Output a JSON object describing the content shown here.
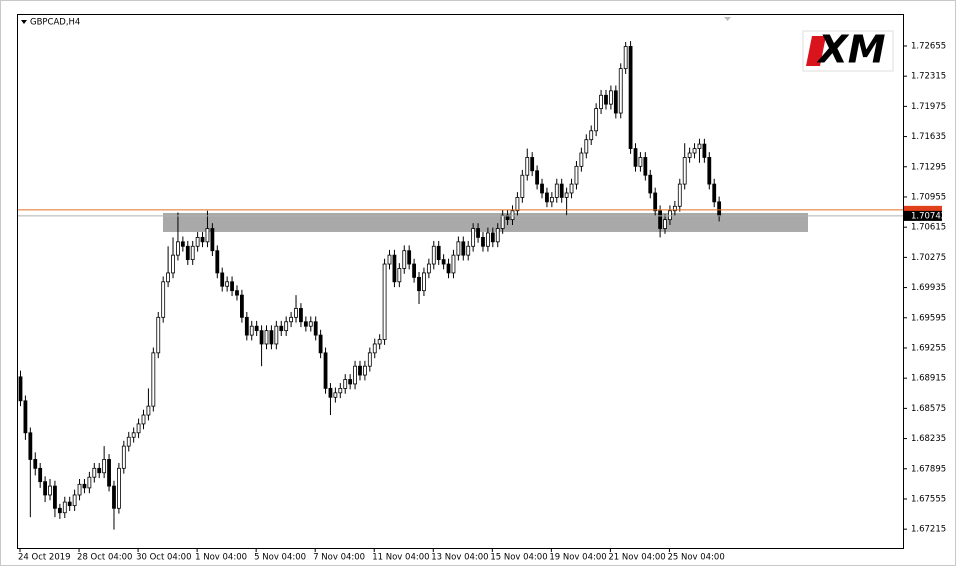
{
  "chart_data": {
    "type": "candlestick",
    "symbol": "GBPCAD,H4",
    "logo": "XM",
    "ylim": [
      1.67003,
      1.73015
    ],
    "yticks": [
      1.72655,
      1.72315,
      1.71975,
      1.71635,
      1.71295,
      1.70955,
      1.70615,
      1.70275,
      1.69935,
      1.69595,
      1.69255,
      1.68915,
      1.68575,
      1.68235,
      1.67895,
      1.67555,
      1.67215
    ],
    "xticks": [
      {
        "value": 0,
        "label": "24 Oct 2019"
      },
      {
        "value": 12,
        "label": "28 Oct 04:00"
      },
      {
        "value": 24,
        "label": "30 Oct 04:00"
      },
      {
        "value": 36,
        "label": "1 Nov 04:00"
      },
      {
        "value": 48,
        "label": "5 Nov 04:00"
      },
      {
        "value": 60,
        "label": "7 Nov 04:00"
      },
      {
        "value": 72,
        "label": "11 Nov 04:00"
      },
      {
        "value": 84,
        "label": "13 Nov 04:00"
      },
      {
        "value": 96,
        "label": "15 Nov 04:00"
      },
      {
        "value": 108,
        "label": "19 Nov 04:00"
      },
      {
        "value": 120,
        "label": "21 Nov 04:00"
      },
      {
        "value": 132,
        "label": "25 Nov 04:00"
      }
    ],
    "bid": {
      "value": 1.70742,
      "label": "1.70742"
    },
    "ask_line": 1.7081,
    "zone": [
      1.70561,
      1.70775
    ],
    "up_color": "#ffffff",
    "down_color": "#000000",
    "candles": [
      [
        1.6893,
        1.69,
        1.686,
        1.6866
      ],
      [
        1.6866,
        1.6872,
        1.6822,
        1.683
      ],
      [
        1.683,
        1.6836,
        1.6735,
        1.68
      ],
      [
        1.68,
        1.6808,
        1.6782,
        1.679
      ],
      [
        1.679,
        1.6796,
        1.6768,
        1.6775
      ],
      [
        1.6775,
        1.6781,
        1.6752,
        1.676
      ],
      [
        1.676,
        1.6778,
        1.6754,
        1.677
      ],
      [
        1.677,
        1.6776,
        1.6735,
        1.6745
      ],
      [
        1.6745,
        1.675,
        1.6733,
        1.674
      ],
      [
        1.674,
        1.6758,
        1.6734,
        1.6752
      ],
      [
        1.6752,
        1.6758,
        1.6742,
        1.6748
      ],
      [
        1.6748,
        1.6766,
        1.6742,
        1.676
      ],
      [
        1.676,
        1.6778,
        1.6754,
        1.6772
      ],
      [
        1.6772,
        1.6778,
        1.6762,
        1.6768
      ],
      [
        1.6768,
        1.6786,
        1.6762,
        1.678
      ],
      [
        1.678,
        1.6796,
        1.6774,
        1.679
      ],
      [
        1.679,
        1.6796,
        1.6779,
        1.6785
      ],
      [
        1.6785,
        1.6815,
        1.6779,
        1.68
      ],
      [
        1.68,
        1.6806,
        1.6764,
        1.677
      ],
      [
        1.677,
        1.6776,
        1.6721,
        1.6745
      ],
      [
        1.6745,
        1.6796,
        1.6739,
        1.679
      ],
      [
        1.679,
        1.6821,
        1.6784,
        1.6815
      ],
      [
        1.6815,
        1.6831,
        1.6809,
        1.6825
      ],
      [
        1.6825,
        1.6836,
        1.6819,
        1.683
      ],
      [
        1.683,
        1.6846,
        1.6824,
        1.684
      ],
      [
        1.684,
        1.6856,
        1.6834,
        1.685
      ],
      [
        1.685,
        1.688,
        1.6844,
        1.686
      ],
      [
        1.686,
        1.6926,
        1.6854,
        1.692
      ],
      [
        1.692,
        1.6966,
        1.6914,
        1.696
      ],
      [
        1.696,
        1.7006,
        1.6954,
        1.7
      ],
      [
        1.7,
        1.704,
        1.6994,
        1.701
      ],
      [
        1.701,
        1.705,
        1.7004,
        1.703
      ],
      [
        1.703,
        1.7078,
        1.7024,
        1.7045
      ],
      [
        1.7045,
        1.7051,
        1.7034,
        1.704
      ],
      [
        1.704,
        1.7046,
        1.7019,
        1.7025
      ],
      [
        1.7025,
        1.7046,
        1.7019,
        1.704
      ],
      [
        1.704,
        1.7056,
        1.7034,
        1.705
      ],
      [
        1.705,
        1.7056,
        1.7039,
        1.7045
      ],
      [
        1.7045,
        1.708,
        1.7039,
        1.706
      ],
      [
        1.706,
        1.7066,
        1.7029,
        1.7035
      ],
      [
        1.7035,
        1.7041,
        1.7004,
        1.701
      ],
      [
        1.701,
        1.7016,
        1.6989,
        1.6995
      ],
      [
        1.6995,
        1.7006,
        1.6989,
        1.7
      ],
      [
        1.7,
        1.7006,
        1.6984,
        1.699
      ],
      [
        1.699,
        1.6996,
        1.6979,
        1.6985
      ],
      [
        1.6985,
        1.6991,
        1.6954,
        1.696
      ],
      [
        1.696,
        1.6966,
        1.6934,
        1.694
      ],
      [
        1.694,
        1.6956,
        1.6934,
        1.695
      ],
      [
        1.695,
        1.6956,
        1.6939,
        1.6945
      ],
      [
        1.6945,
        1.6951,
        1.6905,
        1.693
      ],
      [
        1.693,
        1.6951,
        1.6924,
        1.6945
      ],
      [
        1.6945,
        1.6951,
        1.6924,
        1.693
      ],
      [
        1.693,
        1.6956,
        1.6924,
        1.695
      ],
      [
        1.695,
        1.6956,
        1.6939,
        1.6945
      ],
      [
        1.6945,
        1.6961,
        1.6939,
        1.6955
      ],
      [
        1.6955,
        1.6966,
        1.6949,
        1.696
      ],
      [
        1.696,
        1.6985,
        1.6954,
        1.697
      ],
      [
        1.697,
        1.6976,
        1.6949,
        1.6955
      ],
      [
        1.6955,
        1.6961,
        1.6944,
        1.695
      ],
      [
        1.695,
        1.6961,
        1.6944,
        1.6955
      ],
      [
        1.6955,
        1.6961,
        1.6934,
        1.694
      ],
      [
        1.694,
        1.6946,
        1.6914,
        1.692
      ],
      [
        1.692,
        1.6926,
        1.6874,
        1.688
      ],
      [
        1.688,
        1.6886,
        1.685,
        1.687
      ],
      [
        1.687,
        1.6881,
        1.6864,
        1.6875
      ],
      [
        1.6875,
        1.6886,
        1.6869,
        1.688
      ],
      [
        1.688,
        1.6896,
        1.6874,
        1.689
      ],
      [
        1.689,
        1.6896,
        1.6879,
        1.6885
      ],
      [
        1.6885,
        1.6911,
        1.6879,
        1.6905
      ],
      [
        1.6905,
        1.6911,
        1.6889,
        1.6895
      ],
      [
        1.6895,
        1.6911,
        1.6889,
        1.6905
      ],
      [
        1.6905,
        1.6926,
        1.6899,
        1.692
      ],
      [
        1.692,
        1.6936,
        1.6914,
        1.693
      ],
      [
        1.693,
        1.6941,
        1.6924,
        1.6935
      ],
      [
        1.6935,
        1.7026,
        1.6929,
        1.702
      ],
      [
        1.702,
        1.7036,
        1.7014,
        1.703
      ],
      [
        1.703,
        1.7036,
        1.6994,
        1.7
      ],
      [
        1.7,
        1.7021,
        1.6994,
        1.7015
      ],
      [
        1.7015,
        1.7041,
        1.7009,
        1.7035
      ],
      [
        1.7035,
        1.7041,
        1.7014,
        1.702
      ],
      [
        1.702,
        1.7026,
        1.6999,
        1.7005
      ],
      [
        1.7005,
        1.7011,
        1.6975,
        1.699
      ],
      [
        1.699,
        1.7016,
        1.6984,
        1.701
      ],
      [
        1.701,
        1.7026,
        1.7004,
        1.702
      ],
      [
        1.702,
        1.7046,
        1.7014,
        1.704
      ],
      [
        1.704,
        1.7046,
        1.7019,
        1.7025
      ],
      [
        1.7025,
        1.7031,
        1.7014,
        1.702
      ],
      [
        1.702,
        1.7026,
        1.7004,
        1.701
      ],
      [
        1.701,
        1.7036,
        1.7004,
        1.703
      ],
      [
        1.703,
        1.7051,
        1.7024,
        1.7045
      ],
      [
        1.7045,
        1.7051,
        1.7024,
        1.703
      ],
      [
        1.703,
        1.7046,
        1.7024,
        1.704
      ],
      [
        1.704,
        1.7066,
        1.7034,
        1.706
      ],
      [
        1.706,
        1.7066,
        1.7044,
        1.705
      ],
      [
        1.705,
        1.7056,
        1.7034,
        1.704
      ],
      [
        1.704,
        1.7061,
        1.7034,
        1.7055
      ],
      [
        1.7055,
        1.7061,
        1.7039,
        1.7045
      ],
      [
        1.7045,
        1.7066,
        1.7039,
        1.706
      ],
      [
        1.706,
        1.7081,
        1.7054,
        1.7075
      ],
      [
        1.7075,
        1.7081,
        1.7064,
        1.707
      ],
      [
        1.707,
        1.7086,
        1.7064,
        1.708
      ],
      [
        1.708,
        1.7101,
        1.7074,
        1.7095
      ],
      [
        1.7095,
        1.7126,
        1.7089,
        1.712
      ],
      [
        1.712,
        1.715,
        1.7114,
        1.714
      ],
      [
        1.714,
        1.7146,
        1.7119,
        1.7125
      ],
      [
        1.7125,
        1.7131,
        1.7104,
        1.711
      ],
      [
        1.711,
        1.7116,
        1.7094,
        1.71
      ],
      [
        1.71,
        1.7106,
        1.7084,
        1.709
      ],
      [
        1.709,
        1.7101,
        1.7084,
        1.7095
      ],
      [
        1.7095,
        1.7116,
        1.7089,
        1.711
      ],
      [
        1.711,
        1.7116,
        1.7089,
        1.7095
      ],
      [
        1.7095,
        1.7106,
        1.7075,
        1.71
      ],
      [
        1.71,
        1.7116,
        1.7094,
        1.711
      ],
      [
        1.711,
        1.7136,
        1.7104,
        1.713
      ],
      [
        1.713,
        1.7151,
        1.7124,
        1.7145
      ],
      [
        1.7145,
        1.7166,
        1.7139,
        1.716
      ],
      [
        1.716,
        1.7176,
        1.7154,
        1.717
      ],
      [
        1.717,
        1.7201,
        1.7164,
        1.7195
      ],
      [
        1.7195,
        1.7216,
        1.7189,
        1.721
      ],
      [
        1.721,
        1.7216,
        1.7194,
        1.72
      ],
      [
        1.72,
        1.7221,
        1.7194,
        1.7215
      ],
      [
        1.7215,
        1.7221,
        1.7184,
        1.719
      ],
      [
        1.719,
        1.7246,
        1.7184,
        1.724
      ],
      [
        1.724,
        1.727,
        1.7234,
        1.7265
      ],
      [
        1.7265,
        1.7271,
        1.7144,
        1.715
      ],
      [
        1.715,
        1.7156,
        1.7124,
        1.713
      ],
      [
        1.713,
        1.7146,
        1.7124,
        1.714
      ],
      [
        1.714,
        1.7146,
        1.7114,
        1.712
      ],
      [
        1.712,
        1.7126,
        1.7094,
        1.71
      ],
      [
        1.71,
        1.7106,
        1.7074,
        1.708
      ],
      [
        1.708,
        1.7086,
        1.705,
        1.706
      ],
      [
        1.706,
        1.7076,
        1.7054,
        1.707
      ],
      [
        1.707,
        1.7086,
        1.7064,
        1.708
      ],
      [
        1.708,
        1.7091,
        1.7074,
        1.7085
      ],
      [
        1.7085,
        1.7116,
        1.7079,
        1.711
      ],
      [
        1.711,
        1.7156,
        1.7104,
        1.714
      ],
      [
        1.714,
        1.7151,
        1.7134,
        1.7145
      ],
      [
        1.7145,
        1.7156,
        1.7139,
        1.715
      ],
      [
        1.715,
        1.7161,
        1.7134,
        1.7155
      ],
      [
        1.7155,
        1.7161,
        1.7134,
        1.714
      ],
      [
        1.714,
        1.7146,
        1.7104,
        1.711
      ],
      [
        1.711,
        1.7116,
        1.7084,
        1.709
      ],
      [
        1.709,
        1.7096,
        1.7068,
        1.7074
      ]
    ]
  }
}
